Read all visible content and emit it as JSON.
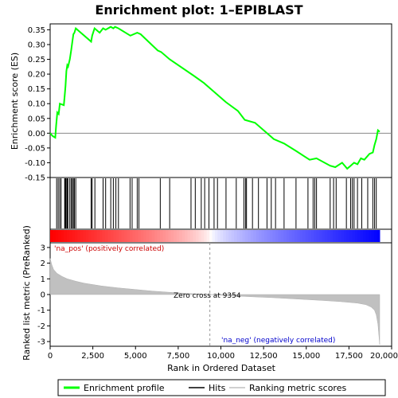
{
  "chart_data": {
    "type": "line",
    "title": "Enrichment plot: 1–EPIBLAST",
    "top_panel": {
      "ylabel": "Enrichment score (ES)",
      "ylim": [
        -0.15,
        0.37
      ],
      "y_ticks": [
        "-0.15",
        "-0.10",
        "-0.05",
        "0.00",
        "0.05",
        "0.10",
        "0.15",
        "0.20",
        "0.25",
        "0.30",
        "0.35"
      ],
      "y_tick_values": [
        -0.15,
        -0.1,
        -0.05,
        0.0,
        0.05,
        0.1,
        0.15,
        0.2,
        0.25,
        0.3,
        0.35
      ],
      "grid": false,
      "series": [
        {
          "name": "Enrichment profile",
          "color": "#00ff00",
          "x": [
            0,
            150,
            300,
            350,
            420,
            500,
            570,
            650,
            800,
            850,
            900,
            950,
            1000,
            1050,
            1150,
            1230,
            1300,
            1360,
            1420,
            1500,
            2400,
            2460,
            2600,
            2900,
            3100,
            3250,
            3550,
            3700,
            3800,
            4000,
            4700,
            5100,
            5300,
            6300,
            6500,
            7000,
            8400,
            9000,
            9500,
            10300,
            11000,
            11400,
            12000,
            12700,
            13100,
            13700,
            14400,
            15200,
            15600,
            16400,
            16700,
            17100,
            17400,
            17600,
            17800,
            18000,
            18200,
            18400,
            18700,
            18900,
            19000,
            19100,
            19200,
            19300
          ],
          "y": [
            0.0,
            -0.01,
            -0.015,
            0.025,
            0.07,
            0.065,
            0.1,
            0.098,
            0.095,
            0.125,
            0.16,
            0.21,
            0.23,
            0.225,
            0.25,
            0.28,
            0.31,
            0.335,
            0.34,
            0.355,
            0.31,
            0.33,
            0.355,
            0.34,
            0.355,
            0.35,
            0.36,
            0.355,
            0.36,
            0.355,
            0.33,
            0.34,
            0.335,
            0.28,
            0.275,
            0.25,
            0.195,
            0.17,
            0.145,
            0.105,
            0.075,
            0.045,
            0.035,
            0.0,
            -0.02,
            -0.035,
            -0.06,
            -0.09,
            -0.085,
            -0.11,
            -0.115,
            -0.1,
            -0.12,
            -0.11,
            -0.1,
            -0.105,
            -0.085,
            -0.09,
            -0.07,
            -0.065,
            -0.04,
            -0.02,
            0.01,
            0.005
          ]
        }
      ],
      "hits": [
        380,
        470,
        560,
        640,
        850,
        880,
        910,
        940,
        1000,
        1040,
        1150,
        1230,
        1300,
        1360,
        1420,
        1500,
        2400,
        2460,
        2620,
        3100,
        3250,
        3550,
        3700,
        3850,
        4000,
        4680,
        4800,
        5100,
        5200,
        6450,
        7000,
        8250,
        8500,
        8850,
        9050,
        9300,
        9600,
        9800,
        10300,
        10900,
        11350,
        11450,
        11500,
        11850,
        12200,
        12700,
        12950,
        13200,
        13700,
        14400,
        15100,
        15400,
        15500,
        15600,
        16400,
        16600,
        16750,
        17350,
        17600,
        17700,
        17800,
        18000,
        18250,
        18600,
        18900,
        19000,
        19100
      ]
    },
    "middle_panel": {
      "colorbar": "ranked list, red (positive) to blue (negative)"
    },
    "bottom_panel": {
      "ylabel": "Ranked list metric (PreRanked)",
      "ylim": [
        -3.3,
        3.3
      ],
      "y_ticks": [
        "-3",
        "-2",
        "-1",
        "0",
        "1",
        "2",
        "3"
      ],
      "y_tick_values": [
        -3,
        -2,
        -1,
        0,
        1,
        2,
        3
      ],
      "xlabel": "Rank in Ordered Dataset",
      "xlim": [
        0,
        20000
      ],
      "x_ticks": [
        "0",
        "2,500",
        "5,000",
        "7,500",
        "10,000",
        "12,500",
        "15,000",
        "17,500",
        "20,000"
      ],
      "x_tick_values": [
        0,
        2500,
        5000,
        7500,
        10000,
        12500,
        15000,
        17500,
        20000
      ],
      "metric_curve": {
        "x": [
          0,
          100,
          200,
          400,
          700,
          1000,
          1500,
          2000,
          3000,
          4000,
          5000,
          6000,
          7000,
          8000,
          9354,
          10000,
          11000,
          12000,
          13000,
          14000,
          15000,
          16000,
          17000,
          18000,
          18500,
          18800,
          19000,
          19100,
          19200,
          19300
        ],
        "y": [
          2.3,
          1.9,
          1.6,
          1.35,
          1.15,
          1.0,
          0.85,
          0.72,
          0.55,
          0.42,
          0.32,
          0.22,
          0.14,
          0.07,
          0.0,
          -0.04,
          -0.1,
          -0.15,
          -0.2,
          -0.26,
          -0.32,
          -0.38,
          -0.45,
          -0.55,
          -0.65,
          -0.8,
          -1.0,
          -1.3,
          -1.9,
          -3.2
        ]
      },
      "annotations": [
        {
          "text": "'na_pos' (positively correlated)",
          "color": "#cc0000"
        },
        {
          "text": "Zero cross at 9354",
          "x": 9354
        },
        {
          "text": "'na_neg' (negatively correlated)",
          "color": "#0000cc"
        }
      ]
    },
    "legend": {
      "placement": "bottom",
      "entries": [
        {
          "label": "Enrichment profile",
          "color": "#00ff00"
        },
        {
          "label": "Hits",
          "color": "#000000"
        },
        {
          "label": "Ranking metric scores",
          "color": "#c0c0c0"
        }
      ]
    }
  }
}
